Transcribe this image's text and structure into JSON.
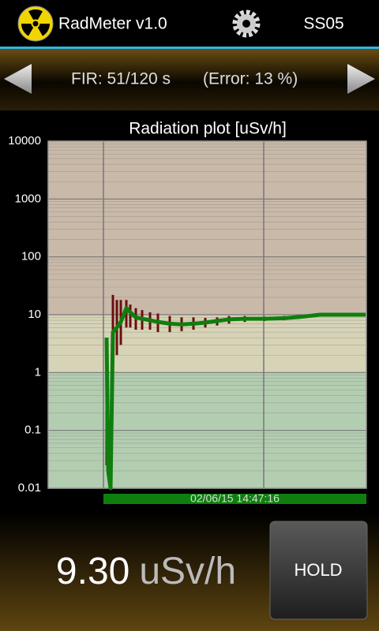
{
  "app": {
    "title": "RadMeter v1.0",
    "station": "SS05",
    "fir": "FIR: 51/120 s",
    "error": "(Error: 13 %)",
    "reading": "9.30",
    "unit": "uSv/h",
    "hold": "HOLD"
  },
  "chart_data": {
    "type": "line",
    "title": "Radiation plot [uSv/h]",
    "log_scale": true,
    "grid": true,
    "ylim": [
      0.01,
      10000
    ],
    "yticks": [
      10000,
      1000,
      100,
      10,
      1,
      0.1,
      0.01
    ],
    "xlim": [
      -74,
      329
    ],
    "xticks": [
      -4,
      199
    ],
    "bands": [
      {
        "from": 10,
        "to": 10000,
        "color": "#c9b9a9"
      },
      {
        "from": 1,
        "to": 10,
        "color": "#d6d3b7"
      },
      {
        "from": 0.01,
        "to": 1,
        "color": "#b3cdb1"
      }
    ],
    "x": [
      0,
      2,
      5,
      8,
      13,
      18,
      25,
      30,
      37,
      45,
      55,
      65,
      80,
      95,
      110,
      125,
      140,
      155,
      175,
      200,
      225,
      250,
      270,
      300,
      328
    ],
    "values": [
      4,
      0.02,
      0.01,
      5,
      6,
      7.5,
      13,
      11,
      9,
      8.5,
      8,
      7.5,
      7,
      6.8,
      7,
      7.3,
      7.8,
      8.3,
      8.5,
      8.5,
      8.7,
      9.3,
      10,
      10,
      10
    ],
    "error_low": [
      0.025,
      null,
      null,
      2,
      2,
      3,
      6,
      6,
      5.5,
      5.5,
      5.5,
      5,
      5,
      5.2,
      5.5,
      6,
      6.5,
      7,
      7.5,
      7.8,
      8,
      8.7,
      9.4,
      9.5,
      null
    ],
    "error_high": [
      4,
      null,
      null,
      22,
      18,
      18,
      18,
      15,
      13,
      12,
      11,
      10.5,
      9.5,
      9,
      9,
      8.8,
      9,
      9.5,
      9.5,
      9.3,
      9.5,
      10,
      10.6,
      10.5,
      null
    ],
    "color": "#0e7f0e",
    "error_color": "#6b0f0f",
    "timestamp": "02/06/15 14:47:16"
  }
}
